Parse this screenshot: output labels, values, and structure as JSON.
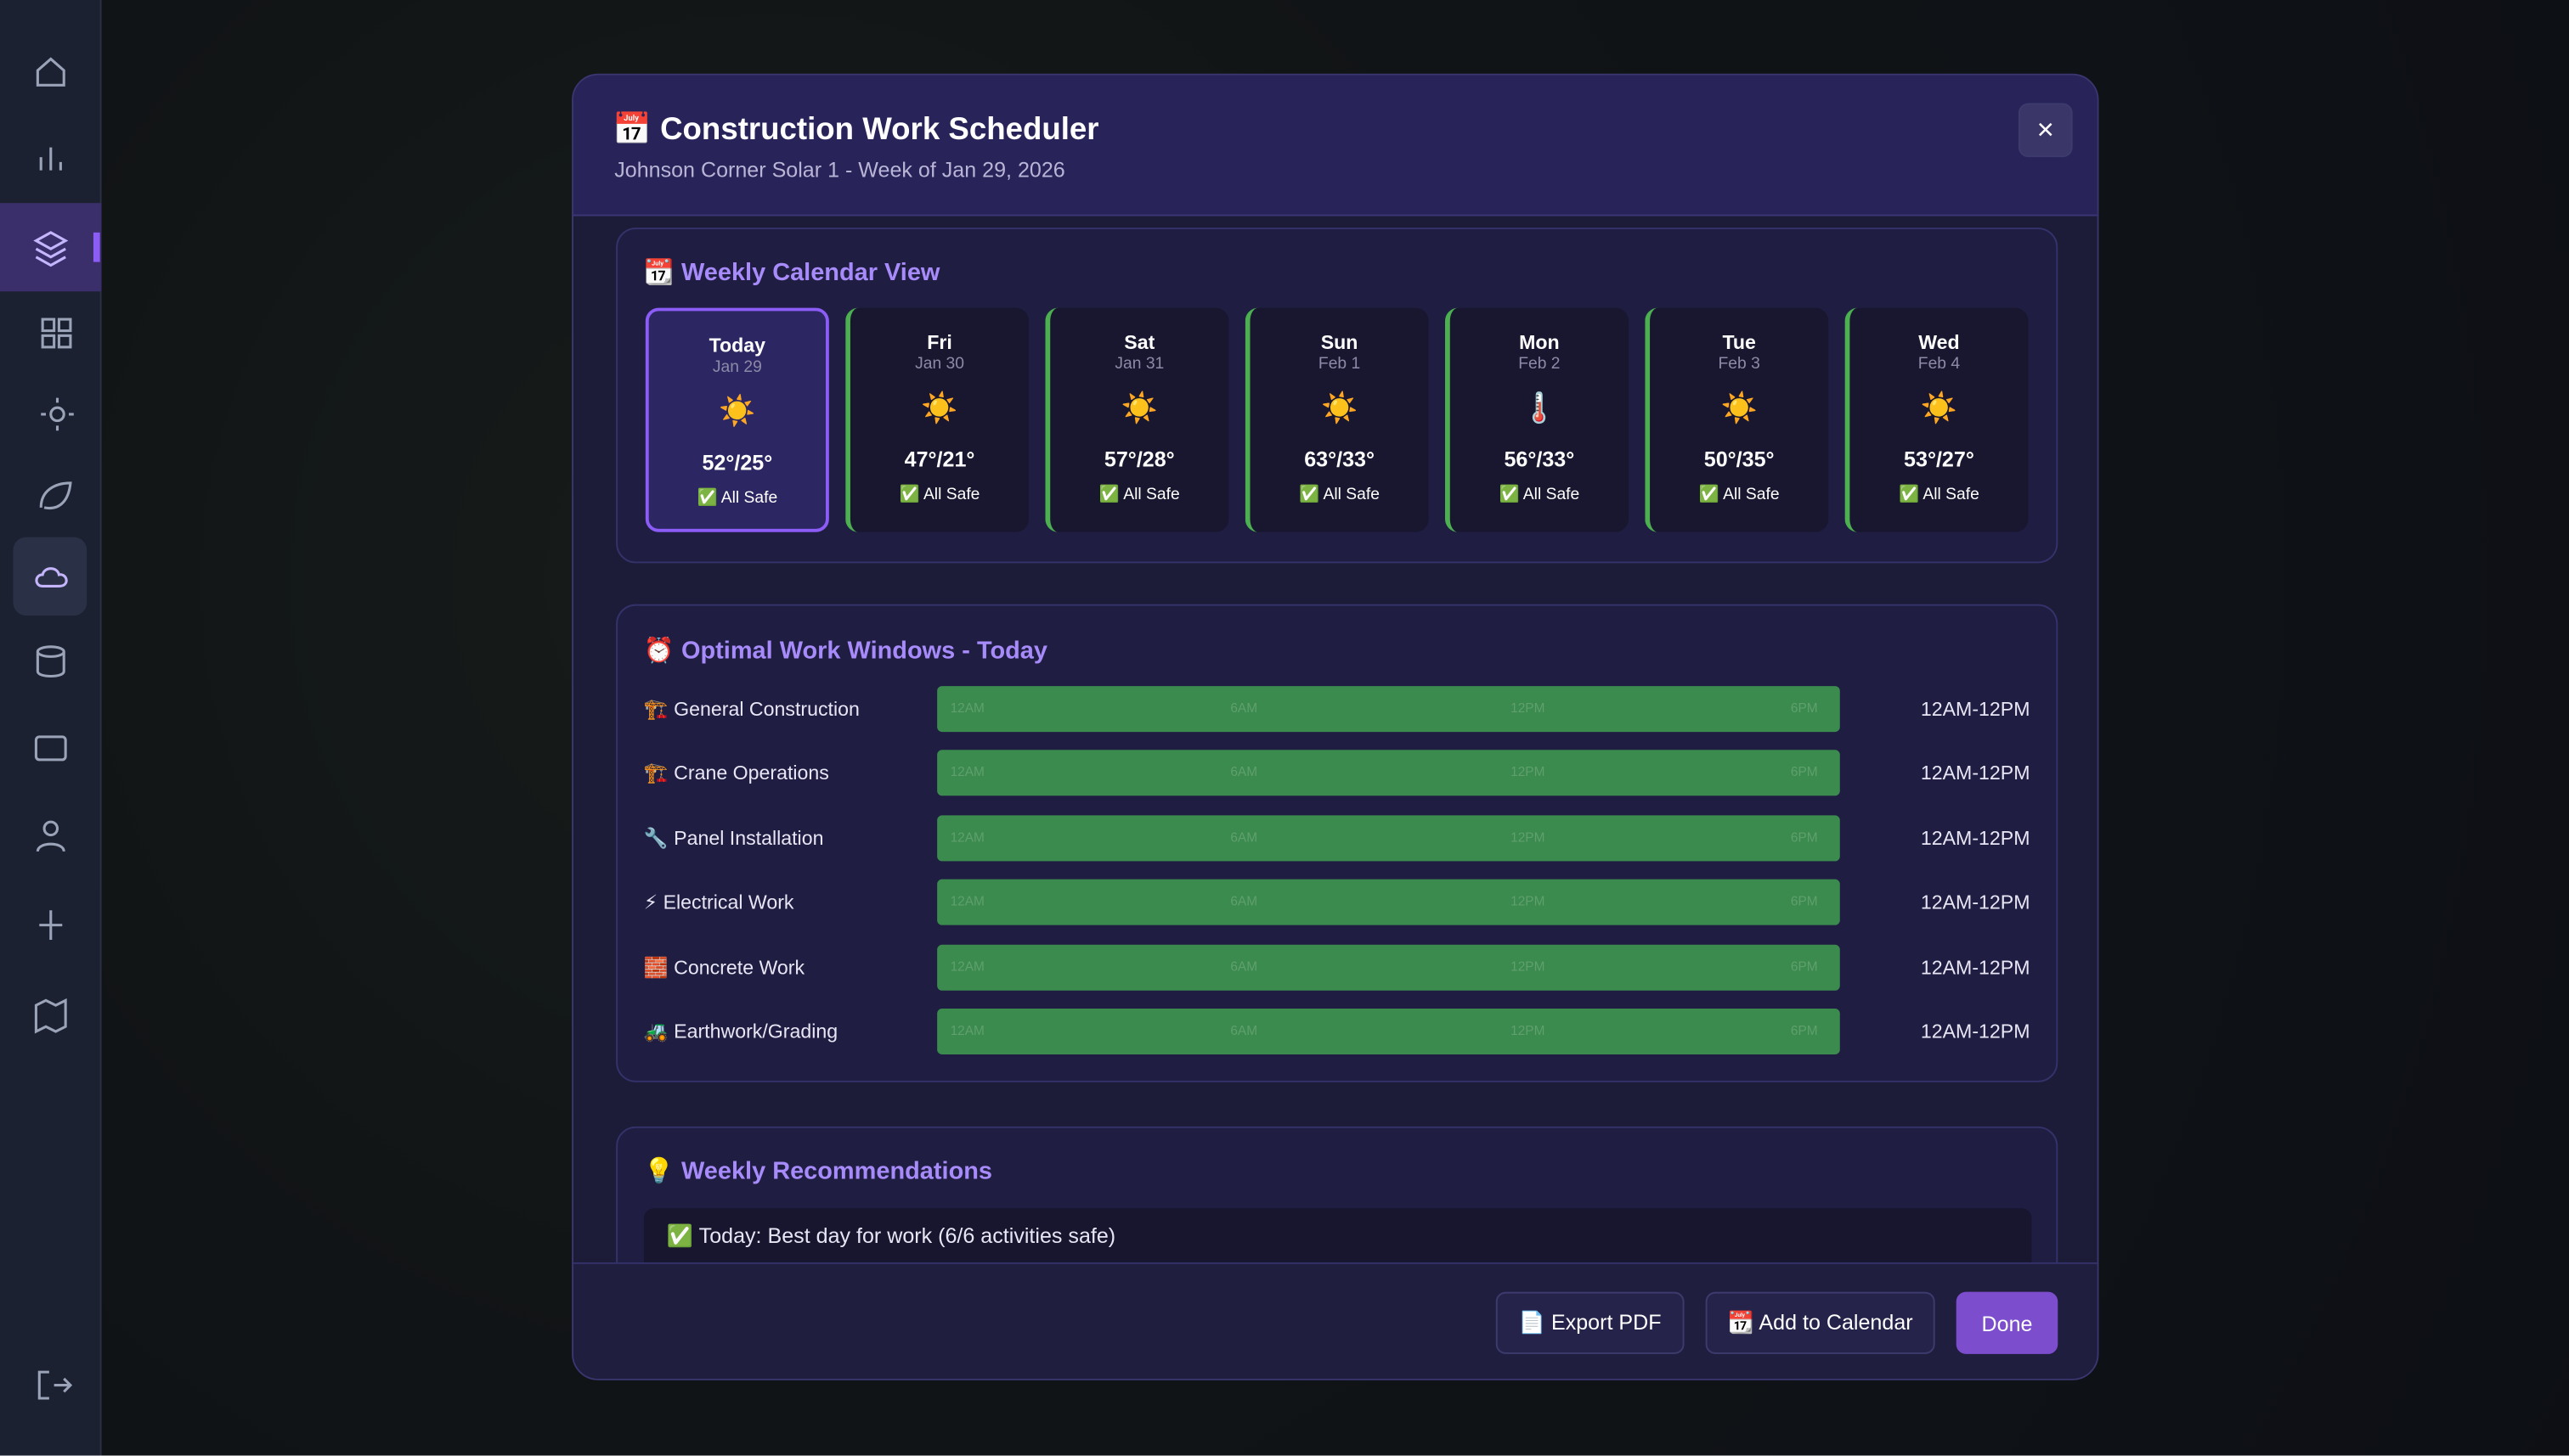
{
  "header": {
    "title": "📅 Construction Work Scheduler",
    "subtitle": "Johnson Corner Solar 1 - Week of Jan 29, 2026",
    "close": "×"
  },
  "calendar": {
    "title": "📆 Weekly Calendar View",
    "days": [
      {
        "day": "Today",
        "date": "Jan 29",
        "icon": "☀️",
        "temp": "52°/25°",
        "status": "✅ All Safe"
      },
      {
        "day": "Fri",
        "date": "Jan 30",
        "icon": "☀️",
        "temp": "47°/21°",
        "status": "✅ All Safe"
      },
      {
        "day": "Sat",
        "date": "Jan 31",
        "icon": "☀️",
        "temp": "57°/28°",
        "status": "✅ All Safe"
      },
      {
        "day": "Sun",
        "date": "Feb 1",
        "icon": "☀️",
        "temp": "63°/33°",
        "status": "✅ All Safe"
      },
      {
        "day": "Mon",
        "date": "Feb 2",
        "icon": "🌡️",
        "temp": "56°/33°",
        "status": "✅ All Safe"
      },
      {
        "day": "Tue",
        "date": "Feb 3",
        "icon": "☀️",
        "temp": "50°/35°",
        "status": "✅ All Safe"
      },
      {
        "day": "Wed",
        "date": "Feb 4",
        "icon": "☀️",
        "temp": "53°/27°",
        "status": "✅ All Safe"
      }
    ]
  },
  "windows": {
    "title": "⏰ Optimal Work Windows - Today",
    "axis_labels": [
      "12AM",
      "6AM",
      "12PM",
      "6PM"
    ],
    "rows": [
      {
        "label": "🏗️ General Construction",
        "range": "12AM-12PM"
      },
      {
        "label": "🏗️ Crane Operations",
        "range": "12AM-12PM"
      },
      {
        "label": "🔧 Panel Installation",
        "range": "12AM-12PM"
      },
      {
        "label": "⚡ Electrical Work",
        "range": "12AM-12PM"
      },
      {
        "label": "🧱 Concrete Work",
        "range": "12AM-12PM"
      },
      {
        "label": "🚜 Earthwork/Grading",
        "range": "12AM-12PM"
      }
    ]
  },
  "recommendations": {
    "title": "💡 Weekly Recommendations",
    "items": [
      "✅ Today: Best day for work (6/6 activities safe)"
    ]
  },
  "footer": {
    "buttons": [
      "📄 Export PDF",
      "📆 Add to Calendar",
      "Done"
    ]
  }
}
